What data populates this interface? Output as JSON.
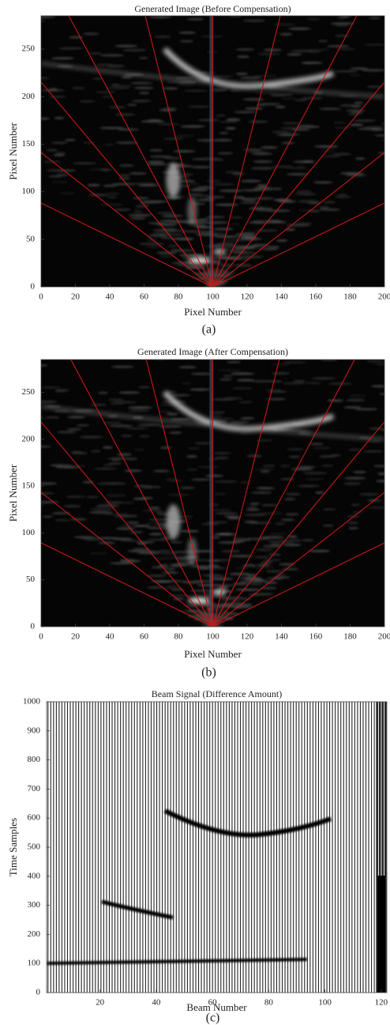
{
  "chart_data": [
    {
      "type": "image",
      "title": "Generated Image (Before Compensation)",
      "x_label": "Pixel Number",
      "y_label": "Pixel Number",
      "caption": "(a)",
      "xlim": [
        0,
        200
      ],
      "ylim": [
        0,
        285
      ],
      "xticks": [
        0,
        20,
        40,
        60,
        80,
        100,
        120,
        140,
        160,
        180,
        200
      ],
      "yticks": [
        0,
        50,
        100,
        150,
        200,
        250
      ]
    },
    {
      "type": "image",
      "title": "Generated Image (After Compensation)",
      "x_label": "Pixel Number",
      "y_label": "Pixel Number",
      "caption": "(b)",
      "xlim": [
        0,
        200
      ],
      "ylim": [
        0,
        285
      ],
      "xticks": [
        0,
        20,
        40,
        60,
        80,
        100,
        120,
        140,
        160,
        180,
        200
      ],
      "yticks": [
        0,
        50,
        100,
        150,
        200,
        250
      ]
    },
    {
      "type": "image",
      "title": "Beam Signal (Difference Amount)",
      "x_label": "Beam Number",
      "y_label": "Time Samples",
      "caption": "(c)",
      "xlim": [
        1,
        122
      ],
      "ylim": [
        0,
        1000
      ],
      "xticks": [
        20,
        40,
        60,
        80,
        100,
        120
      ],
      "yticks": [
        0,
        100,
        200,
        300,
        400,
        500,
        600,
        700,
        800,
        900,
        1000
      ]
    }
  ]
}
